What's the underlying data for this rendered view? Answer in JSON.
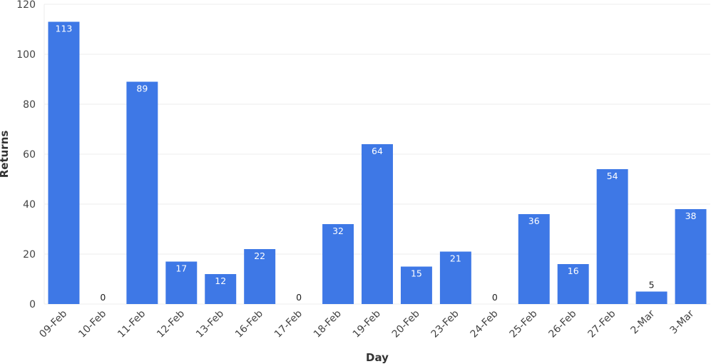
{
  "chart_data": {
    "type": "bar",
    "xlabel": "Day",
    "ylabel": "Returns",
    "ylim": [
      0,
      120
    ],
    "yticks": [
      0,
      20,
      40,
      60,
      80,
      100,
      120
    ],
    "grid": true,
    "bar_color": "#3e78e6",
    "categories": [
      "09-Feb",
      "10-Feb",
      "11-Feb",
      "12-Feb",
      "13-Feb",
      "16-Feb",
      "17-Feb",
      "18-Feb",
      "19-Feb",
      "20-Feb",
      "23-Feb",
      "24-Feb",
      "25-Feb",
      "26-Feb",
      "27-Feb",
      "2-Mar",
      "3-Mar"
    ],
    "values": [
      113,
      0,
      89,
      17,
      12,
      22,
      0,
      32,
      64,
      15,
      21,
      0,
      36,
      16,
      54,
      5,
      38
    ]
  }
}
